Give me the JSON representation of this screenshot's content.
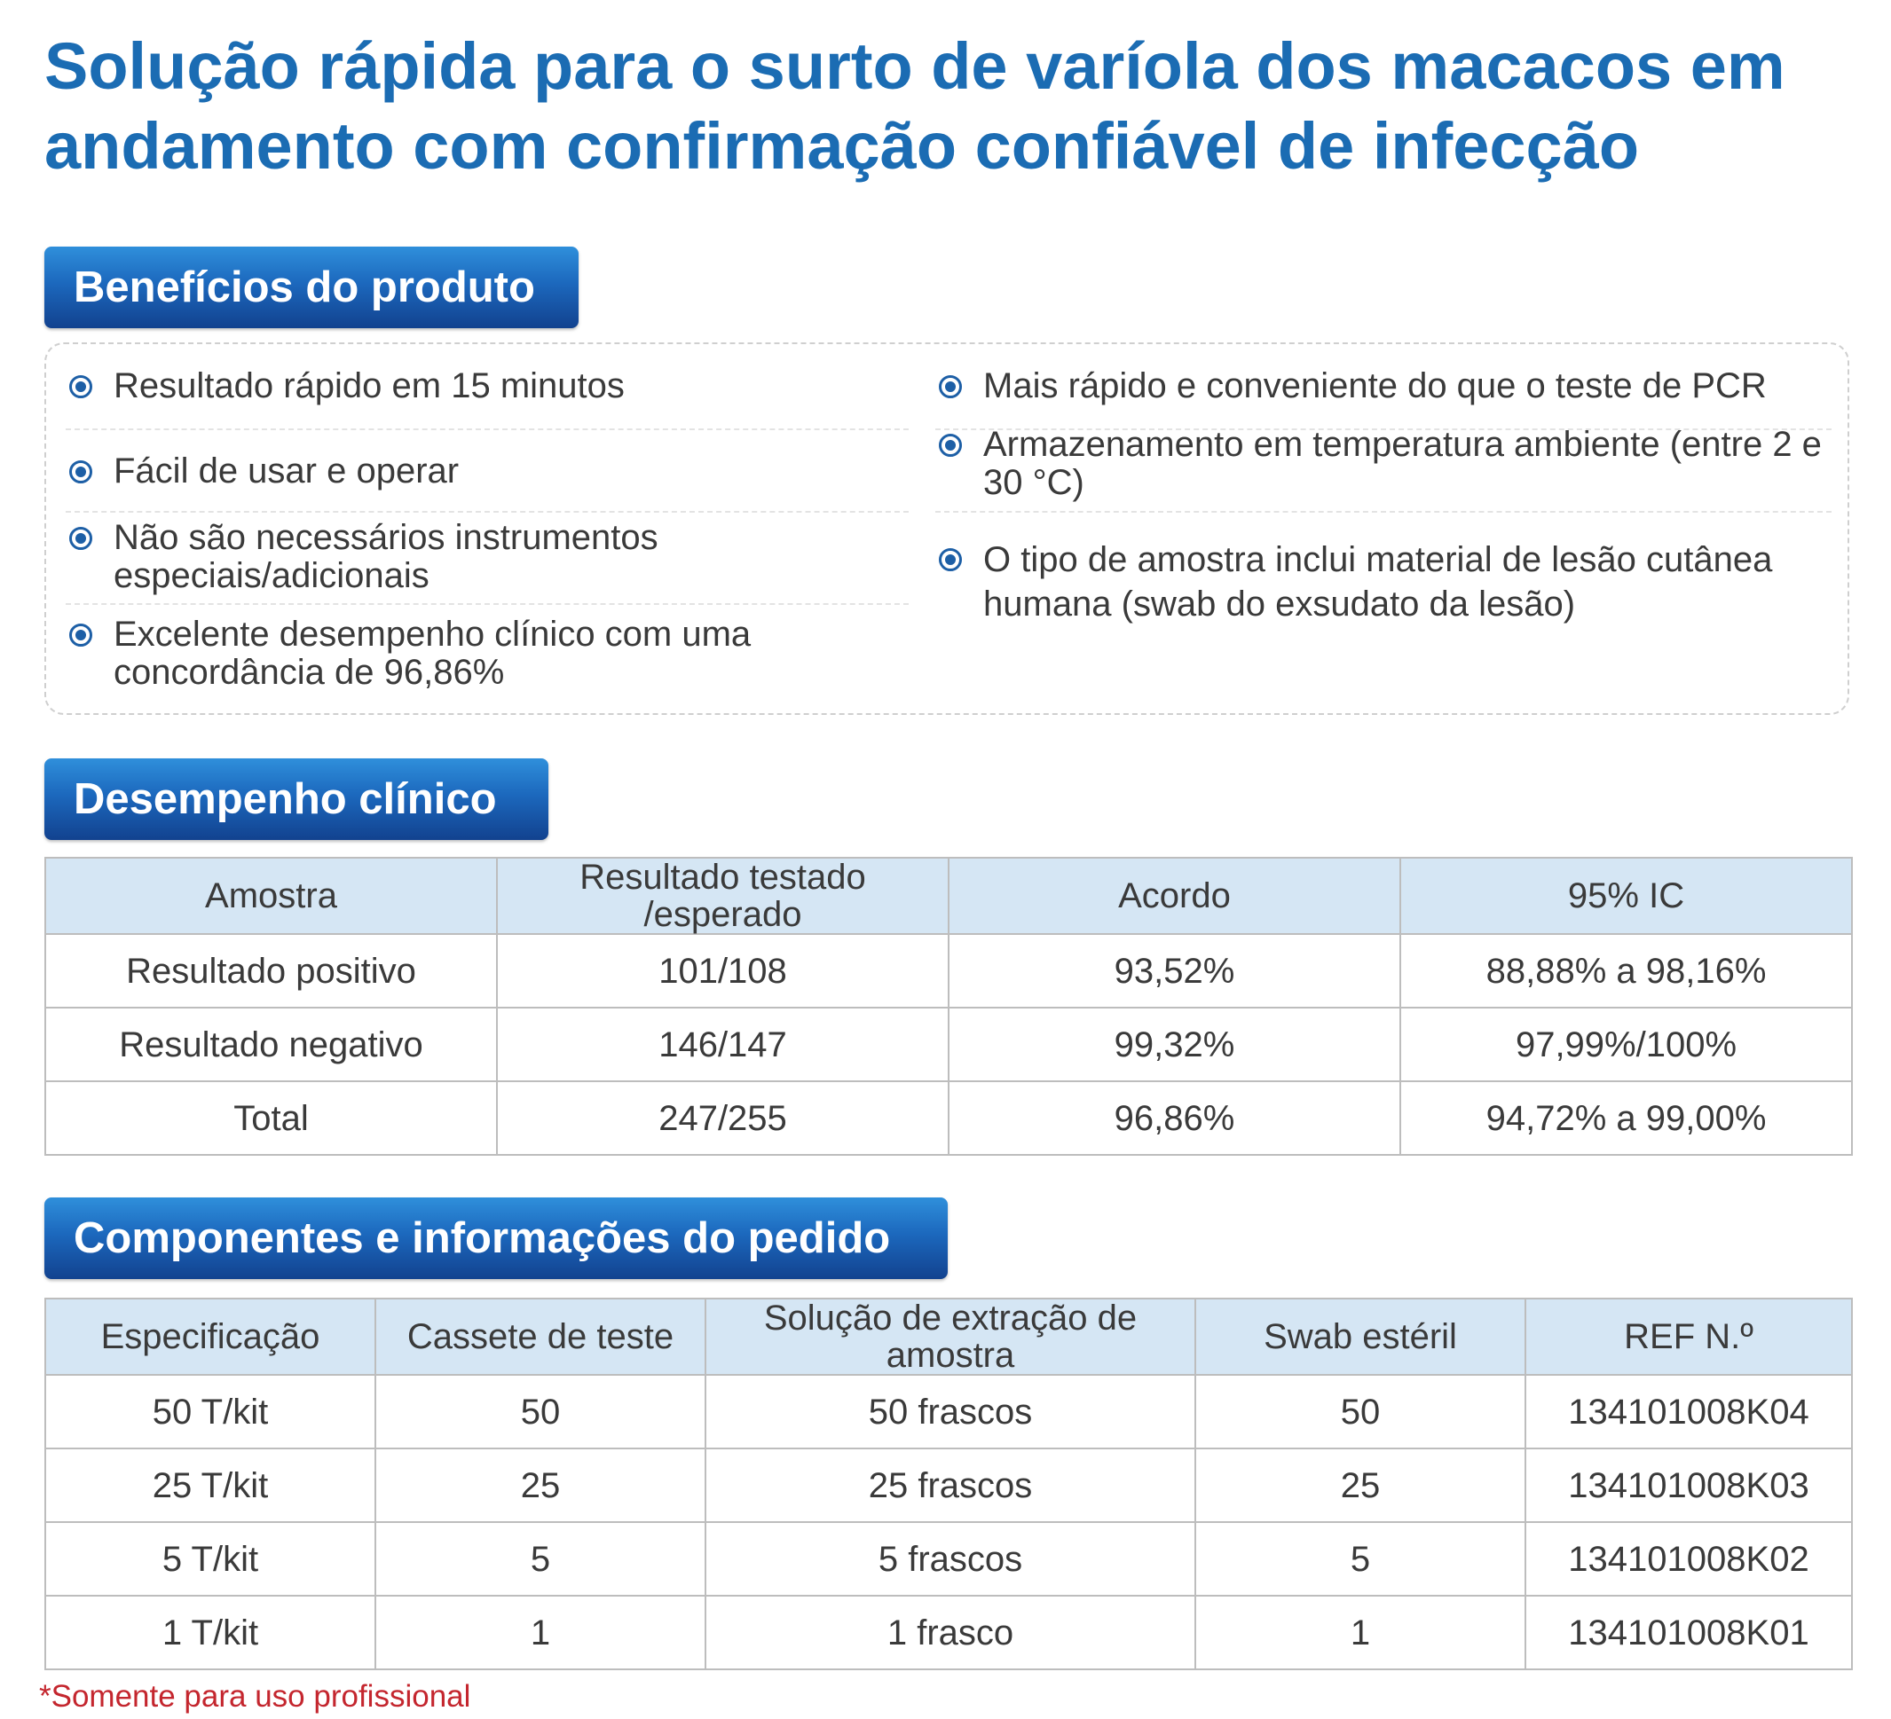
{
  "title": "Solução rápida para o surto de varíola dos macacos em andamento com confirmação confiável de infecção",
  "benefits": {
    "header": "Benefícios do produto",
    "left_items": [
      "Resultado rápido em 15 minutos",
      "Fácil de usar e operar",
      "Não são necessários instrumentos especiais/adicionais",
      "Excelente desempenho clínico com uma concordância de 96,86%"
    ],
    "right_items": [
      "Mais rápido e conveniente do que o teste de PCR",
      "Armazenamento em temperatura ambiente (entre 2 e 30 °C)",
      "O tipo de amostra inclui material de lesão cutânea humana (swab do exsudato da lesão)"
    ],
    "bullet_icon": "radio-bullet-icon"
  },
  "clinical": {
    "header": "Desempenho clínico",
    "columns": [
      "Amostra",
      "Resultado testado /esperado",
      "Acordo",
      "95% IC"
    ],
    "rows": [
      [
        "Resultado positivo",
        "101/108",
        "93,52%",
        "88,88% a 98,16%"
      ],
      [
        "Resultado negativo",
        "146/147",
        "99,32%",
        "97,99%/100%"
      ],
      [
        "Total",
        "247/255",
        "96,86%",
        "94,72% a 99,00%"
      ]
    ]
  },
  "order": {
    "header": "Componentes e informações do pedido",
    "columns": [
      "Especificação",
      "Cassete de teste",
      "Solução de extração de amostra",
      "Swab estéril",
      "REF N.º"
    ],
    "rows": [
      [
        "50 T/kit",
        "50",
        "50 frascos",
        "50",
        "134101008K04"
      ],
      [
        "25 T/kit",
        "25",
        "25 frascos",
        "25",
        "134101008K03"
      ],
      [
        "5 T/kit",
        "5",
        "5 frascos",
        "5",
        "134101008K02"
      ],
      [
        "1 T/kit",
        "1",
        "1 frasco",
        "1",
        "134101008K01"
      ]
    ]
  },
  "footnote": "*Somente para uso profissional",
  "colors": {
    "title": "#1b6cb3",
    "header_gradient_top": "#2f8fdb",
    "header_gradient_bottom": "#12428f",
    "table_header_bg": "#d5e6f4",
    "footnote": "#c4262e"
  }
}
